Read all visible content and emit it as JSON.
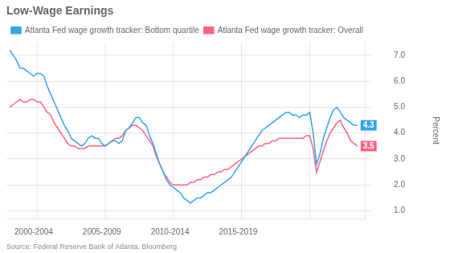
{
  "chart_data": {
    "type": "line",
    "title": "Low-Wage Earnings",
    "source": "Source: Federal Reserve Bank of Atlanta, Bloomberg",
    "y_label": "Percent",
    "x": [
      1997.75,
      1998.0,
      1998.25,
      1998.5,
      1998.75,
      1999.0,
      1999.25,
      1999.5,
      1999.75,
      2000.0,
      2000.25,
      2000.5,
      2000.75,
      2001.0,
      2001.25,
      2001.5,
      2001.75,
      2002.0,
      2002.25,
      2002.5,
      2002.75,
      2003.0,
      2003.25,
      2003.5,
      2003.75,
      2004.0,
      2004.25,
      2004.5,
      2004.75,
      2005.0,
      2005.25,
      2005.5,
      2005.75,
      2006.0,
      2006.25,
      2006.5,
      2006.75,
      2007.0,
      2007.25,
      2007.5,
      2007.75,
      2008.0,
      2008.25,
      2008.5,
      2008.75,
      2009.0,
      2009.25,
      2009.5,
      2009.75,
      2010.0,
      2010.25,
      2010.5,
      2010.75,
      2011.0,
      2011.25,
      2011.5,
      2011.75,
      2012.0,
      2012.25,
      2012.5,
      2012.75,
      2013.0,
      2013.25,
      2013.5,
      2013.75,
      2014.0,
      2014.25,
      2014.5,
      2014.75,
      2015.0,
      2015.25,
      2015.5,
      2015.75,
      2016.0,
      2016.25,
      2016.5,
      2016.75,
      2017.0,
      2017.25,
      2017.5,
      2017.75,
      2018.0,
      2018.25,
      2018.5,
      2018.75,
      2019.0,
      2019.25,
      2019.5,
      2019.75,
      2020.0,
      2020.25,
      2020.5,
      2020.75,
      2021.0,
      2021.25,
      2021.5,
      2021.75,
      2022.0,
      2022.25,
      2022.5,
      2022.75,
      2023.0,
      2023.25
    ],
    "series": [
      {
        "name": "Atlanta Fed wage growth tracker: Bottom quartile",
        "end_label": "4.3",
        "values": [
          7.2,
          7.0,
          6.8,
          6.5,
          6.5,
          6.4,
          6.3,
          6.2,
          6.3,
          6.3,
          6.2,
          5.8,
          5.5,
          5.2,
          4.9,
          4.6,
          4.3,
          4.1,
          3.8,
          3.7,
          3.6,
          3.5,
          3.6,
          3.8,
          3.9,
          3.8,
          3.8,
          3.6,
          3.5,
          3.6,
          3.7,
          3.7,
          3.6,
          3.7,
          4.1,
          4.2,
          4.4,
          4.6,
          4.6,
          4.4,
          4.3,
          3.9,
          3.6,
          3.2,
          2.8,
          2.5,
          2.2,
          2.0,
          1.9,
          1.8,
          1.7,
          1.5,
          1.4,
          1.3,
          1.4,
          1.5,
          1.5,
          1.6,
          1.7,
          1.7,
          1.8,
          1.9,
          2.0,
          2.1,
          2.2,
          2.3,
          2.5,
          2.7,
          2.9,
          3.1,
          3.3,
          3.5,
          3.7,
          3.9,
          4.1,
          4.2,
          4.3,
          4.4,
          4.5,
          4.6,
          4.7,
          4.8,
          4.8,
          4.7,
          4.7,
          4.6,
          4.7,
          4.7,
          4.8,
          4.0,
          2.8,
          3.2,
          3.8,
          4.2,
          4.6,
          4.9,
          5.0,
          4.8,
          4.6,
          4.5,
          4.4,
          4.3,
          4.3
        ]
      },
      {
        "name": "Atlanta Fed wage growth tracker: Overall",
        "end_label": "3.5",
        "values": [
          5.0,
          5.1,
          5.2,
          5.3,
          5.2,
          5.2,
          5.3,
          5.3,
          5.2,
          5.2,
          5.0,
          4.8,
          4.7,
          4.4,
          4.2,
          4.0,
          3.8,
          3.6,
          3.5,
          3.5,
          3.4,
          3.4,
          3.4,
          3.5,
          3.5,
          3.5,
          3.5,
          3.5,
          3.5,
          3.6,
          3.7,
          3.8,
          3.8,
          3.9,
          4.1,
          4.2,
          4.3,
          4.3,
          4.2,
          4.1,
          3.9,
          3.7,
          3.5,
          3.1,
          2.8,
          2.5,
          2.3,
          2.1,
          2.0,
          2.0,
          2.0,
          2.0,
          2.0,
          2.1,
          2.1,
          2.2,
          2.2,
          2.3,
          2.3,
          2.4,
          2.4,
          2.5,
          2.5,
          2.6,
          2.6,
          2.7,
          2.8,
          2.9,
          3.0,
          3.1,
          3.2,
          3.3,
          3.4,
          3.5,
          3.5,
          3.6,
          3.6,
          3.7,
          3.7,
          3.8,
          3.8,
          3.8,
          3.8,
          3.8,
          3.8,
          3.8,
          3.8,
          3.9,
          3.9,
          3.4,
          2.5,
          2.9,
          3.3,
          3.7,
          4.0,
          4.2,
          4.4,
          4.5,
          4.2,
          4.0,
          3.7,
          3.6,
          3.5
        ]
      }
    ],
    "xlim": [
      1997.5,
      2023.8
    ],
    "xticks": [
      {
        "value": 1999.5,
        "label": "2000-2004"
      },
      {
        "value": 2004.5,
        "label": "2005-2009"
      },
      {
        "value": 2009.5,
        "label": "2010-2014"
      },
      {
        "value": 2014.5,
        "label": "2015-2019"
      }
    ],
    "vlines": [
      1999.75,
      2004.75,
      2009.75,
      2014.75,
      2019.75
    ],
    "ylim": [
      0.7,
      7.5
    ],
    "yticks": [
      {
        "value": 1.0,
        "label": "1.0"
      },
      {
        "value": 2.0,
        "label": "2.0"
      },
      {
        "value": 3.0,
        "label": "3.0"
      },
      {
        "value": 4.0,
        "label": "4.0"
      },
      {
        "value": 5.0,
        "label": "5.0"
      },
      {
        "value": 6.0,
        "label": "6.0"
      },
      {
        "value": 7.0,
        "label": "7.0"
      }
    ],
    "grid": "y",
    "legend": "top"
  }
}
